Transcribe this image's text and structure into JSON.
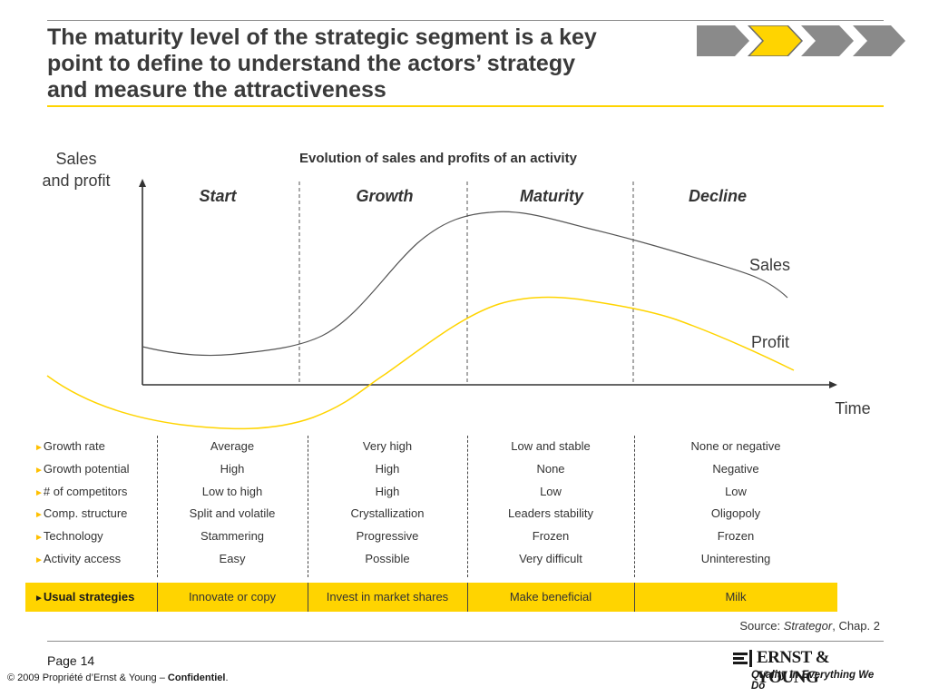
{
  "header": {
    "title_line1": "The maturity level of the strategic segment is a key",
    "title_line2": "point to define to understand the actors’ strategy",
    "title_line3": "and measure the attractiveness"
  },
  "diagram": {
    "heading": "Evolution of sales and profits of an activity",
    "y_label_line1": "Sales",
    "y_label_line2": "and profit",
    "x_label": "Time",
    "phases": [
      "Start",
      "Growth",
      "Maturity",
      "Decline"
    ],
    "curve_labels": {
      "sales": "Sales",
      "profit": "Profit"
    },
    "colors": {
      "sales": "#555555",
      "profit": "#ffd400",
      "axis": "#333333"
    }
  },
  "table": {
    "rows": [
      {
        "label": "Growth rate",
        "values": [
          "Average",
          "Very high",
          "Low and stable",
          "None or negative"
        ]
      },
      {
        "label": "Growth potential",
        "values": [
          "High",
          "High",
          "None",
          "Negative"
        ]
      },
      {
        "label": "# of competitors",
        "values": [
          "Low to high",
          "High",
          "Low",
          "Low"
        ]
      },
      {
        "label": "Comp. structure",
        "values": [
          "Split and volatile",
          "Crystallization",
          "Leaders stability",
          "Oligopoly"
        ]
      },
      {
        "label": "Technology",
        "values": [
          "Stammering",
          "Progressive",
          "Frozen",
          "Frozen"
        ]
      },
      {
        "label": "Activity access",
        "values": [
          "Easy",
          "Possible",
          "Very difficult",
          "Uninteresting"
        ]
      }
    ],
    "strategy": {
      "label": "Usual strategies",
      "values": [
        "Innovate or copy",
        "Invest in market shares",
        "Make beneficial",
        "Milk"
      ]
    },
    "bullet": "►",
    "highlight_color": "#ffd400"
  },
  "source": {
    "prefix": "Source: ",
    "work": "Strategor",
    "suffix": ", Chap. 2"
  },
  "footer": {
    "page": "Page 14",
    "copyright_prefix": "© 2009 Propriété d’Ernst & Young – ",
    "copyright_bold": "Confidentiel",
    "copyright_suffix": ".",
    "logo_name": "ERNST & YOUNG",
    "logo_tagline": "Quality In Everything We Do"
  }
}
